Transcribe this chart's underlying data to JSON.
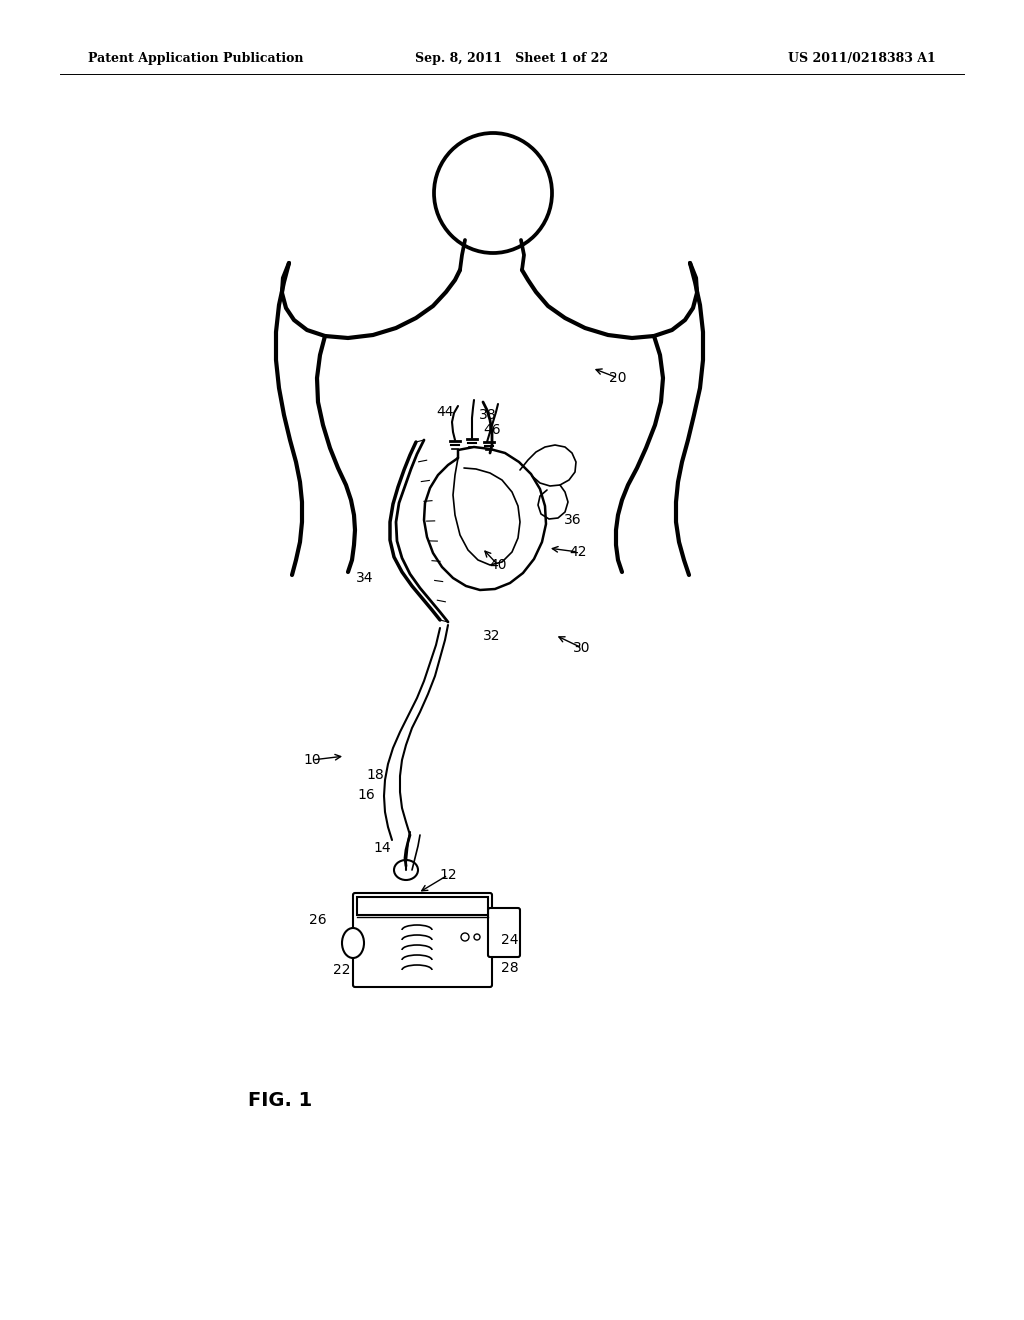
{
  "background_color": "#ffffff",
  "line_color": "#000000",
  "header_left": "Patent Application Publication",
  "header_center": "Sep. 8, 2011   Sheet 1 of 22",
  "header_right": "US 2011/0218383 A1",
  "fig_label": "FIG. 1",
  "body_lw": 3.0,
  "detail_lw": 1.5,
  "label_fontsize": 10
}
